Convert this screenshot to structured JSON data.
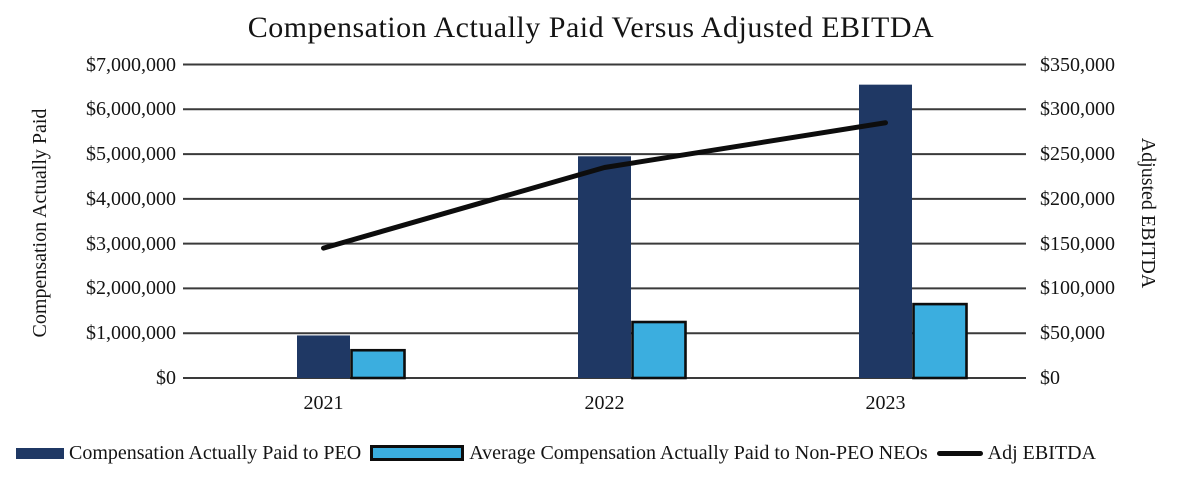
{
  "page": {
    "background": "#ffffff"
  },
  "chart_data": {
    "type": "combo",
    "title": "Compensation Actually Paid Versus Adjusted EBITDA",
    "categories": [
      "2021",
      "2022",
      "2023"
    ],
    "series": [
      {
        "name": "Compensation Actually Paid to PEO",
        "type": "bar",
        "axis": "left",
        "color": "#1F3864",
        "values": [
          950000,
          4950000,
          6550000
        ]
      },
      {
        "name": "Average Compensation Actually Paid to Non-PEO NEOs",
        "type": "bar",
        "axis": "left",
        "color": "#3BAEDF",
        "border_color": "#0D0D0D",
        "values": [
          620000,
          1250000,
          1650000
        ]
      },
      {
        "name": "Adj EBITDA",
        "type": "line",
        "axis": "right",
        "color": "#0D0D0D",
        "values": [
          145000,
          235000,
          285000
        ]
      }
    ],
    "left_axis": {
      "label": "Compensation Actually Paid",
      "min": 0,
      "max": 7000000,
      "tick_labels": [
        "$7,000,000",
        "$6,000,000",
        "$5,000,000",
        "$4,000,000",
        "$3,000,000",
        "$2,000,000",
        "$1,000,000",
        "$0"
      ]
    },
    "right_axis": {
      "label": "Adjusted EBITDA",
      "min": 0,
      "max": 350000,
      "tick_labels": [
        "$350,000",
        "$300,000",
        "$250,000",
        "$200,000",
        "$150,000",
        "$100,000",
        "$50,000",
        "$0"
      ]
    },
    "grid": true,
    "gridline_color": "#3A3A3A",
    "legend_position": "bottom"
  }
}
